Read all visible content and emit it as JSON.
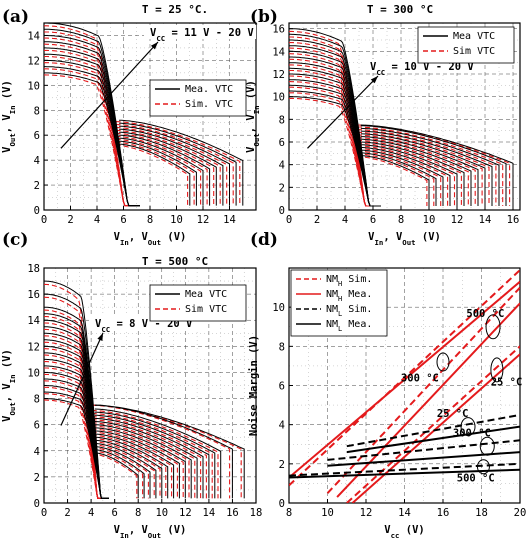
{
  "chart_data": [
    {
      "panel": "(a)",
      "type": "line",
      "title": "T = 25 °C.",
      "annotation": "V_CC = 11 V - 20 V",
      "xlabel": "V_In, V_Out (V)",
      "ylabel": "V_Out, V_In (V)",
      "xlim": [
        0,
        16
      ],
      "ylim": [
        0,
        15
      ],
      "xticks": [
        0,
        2,
        4,
        6,
        8,
        10,
        12,
        14
      ],
      "yticks": [
        0,
        2,
        4,
        6,
        8,
        10,
        12,
        14
      ],
      "grid": true,
      "legend_position": "right-middle",
      "legend": [
        {
          "label": "Mea. VTC",
          "color": "#000000",
          "dash": "solid"
        },
        {
          "label": "Sim. VTC",
          "color": "#e41a1c",
          "dash": "dashed"
        }
      ],
      "vtc_family": {
        "vcc_values": [
          11,
          11.5,
          12,
          12.5,
          13,
          13.5,
          14,
          14.5,
          15
        ],
        "mea": {
          "vm": 6.3,
          "knee": 5.9,
          "low_start": 6.6,
          "low_end": 5.7
        },
        "sim": {
          "vm": 6.0,
          "knee": 5.6,
          "low_start": 6.3,
          "low_end": 5.4
        }
      }
    },
    {
      "panel": "(b)",
      "type": "line",
      "title": "T = 300 °C",
      "annotation": "V_CC = 10 V - 20 V",
      "xlabel": "V_In, V_Out (V)",
      "ylabel": "V_Out, V_In (V)",
      "xlim": [
        0,
        16.5
      ],
      "ylim": [
        0,
        16.5
      ],
      "xticks": [
        0,
        2,
        4,
        6,
        8,
        10,
        12,
        14,
        16
      ],
      "yticks": [
        0,
        2,
        4,
        6,
        8,
        10,
        12,
        14,
        16
      ],
      "grid": true,
      "legend_position": "top-right",
      "legend": [
        {
          "label": "Mea VTC",
          "color": "#000000",
          "dash": "solid"
        },
        {
          "label": "Sim VTC",
          "color": "#e41a1c",
          "dash": "dashed"
        }
      ],
      "vtc_family": {
        "vcc_values": [
          10,
          10.5,
          11,
          11.5,
          12,
          12.5,
          13,
          13.5,
          14,
          14.5,
          15,
          15.5,
          16
        ],
        "mea": {
          "vm": 5.7,
          "knee": 5.4,
          "low_start": 6.0,
          "low_end": 5.2
        },
        "sim": {
          "vm": 5.4,
          "knee": 5.1,
          "low_start": 5.7,
          "low_end": 4.8
        }
      }
    },
    {
      "panel": "(c)",
      "type": "line",
      "title": "T = 500 °C",
      "annotation": "V_CC = 8 V - 20 V",
      "xlabel": "V_In, V_Out (V)",
      "ylabel": "V_Out, V_In (V)",
      "xlim": [
        0,
        18
      ],
      "ylim": [
        0,
        18
      ],
      "xticks": [
        0,
        2,
        4,
        6,
        8,
        10,
        12,
        14,
        16,
        18
      ],
      "yticks": [
        0,
        2,
        4,
        6,
        8,
        10,
        12,
        14,
        16,
        18
      ],
      "grid": true,
      "legend_position": "top-right",
      "legend": [
        {
          "label": "Mea VTC",
          "color": "#000000",
          "dash": "solid"
        },
        {
          "label": "Sim VTC",
          "color": "#e41a1c",
          "dash": "dashed"
        }
      ],
      "vtc_family": {
        "vcc_values": [
          8,
          8.5,
          9,
          9.5,
          10,
          10.5,
          11,
          11.5,
          12,
          12.5,
          13,
          13.5,
          14,
          14.5,
          15,
          16,
          17
        ],
        "mea": {
          "vm": 4.8,
          "knee": 4.5,
          "low_start": 5.0,
          "low_end": 4.3
        },
        "sim": {
          "vm": 4.5,
          "knee": 4.2,
          "low_start": 4.7,
          "low_end": 4.0
        }
      }
    },
    {
      "panel": "(d)",
      "type": "line",
      "title": "",
      "xlabel": "V_cc (V)",
      "ylabel": "Noise Margin (V)",
      "xlim": [
        8,
        20
      ],
      "ylim": [
        0,
        12
      ],
      "xticks": [
        8,
        10,
        12,
        14,
        16,
        18,
        20
      ],
      "yticks": [
        0,
        2,
        4,
        6,
        8,
        10
      ],
      "grid": true,
      "legend_position": "top-left",
      "legend": [
        {
          "label": "NM_H Sim.",
          "color": "#e41a1c",
          "dash": "dashed"
        },
        {
          "label": "NM_H Mea.",
          "color": "#e41a1c",
          "dash": "solid"
        },
        {
          "label": "NM_L Sim.",
          "color": "#000000",
          "dash": "dashed"
        },
        {
          "label": "NM_L Mea.",
          "color": "#000000",
          "dash": "solid"
        }
      ],
      "series": [
        {
          "group": "NM_H Sim.",
          "temp": "500 °C",
          "color": "#e41a1c",
          "dash": "dashed",
          "x": [
            8,
            20
          ],
          "y": [
            0.9,
            11.9
          ]
        },
        {
          "group": "NM_H Mea.",
          "temp": "500 °C",
          "color": "#e41a1c",
          "dash": "solid",
          "x": [
            8,
            20
          ],
          "y": [
            1.3,
            11.3
          ]
        },
        {
          "group": "NM_H Sim.",
          "temp": "300 °C",
          "color": "#e41a1c",
          "dash": "dashed",
          "x": [
            10,
            20
          ],
          "y": [
            0.5,
            11.0
          ]
        },
        {
          "group": "NM_H Mea.",
          "temp": "300 °C",
          "color": "#e41a1c",
          "dash": "solid",
          "x": [
            10.5,
            20
          ],
          "y": [
            0.3,
            10.2
          ]
        },
        {
          "group": "NM_H Sim.",
          "temp": "25 °C",
          "color": "#e41a1c",
          "dash": "dashed",
          "x": [
            11,
            20
          ],
          "y": [
            0,
            8.0
          ]
        },
        {
          "group": "NM_H Mea.",
          "temp": "25 °C",
          "color": "#e41a1c",
          "dash": "solid",
          "x": [
            11.3,
            20
          ],
          "y": [
            0,
            7.6
          ]
        },
        {
          "group": "NM_L Sim.",
          "temp": "25 °C",
          "color": "#000000",
          "dash": "dashed",
          "x": [
            11,
            20
          ],
          "y": [
            2.9,
            4.5
          ]
        },
        {
          "group": "NM_L Mea.",
          "temp": "25 °C",
          "color": "#000000",
          "dash": "solid",
          "x": [
            11,
            20
          ],
          "y": [
            2.6,
            3.9
          ]
        },
        {
          "group": "NM_L Sim.",
          "temp": "300 °C",
          "color": "#000000",
          "dash": "dashed",
          "x": [
            10,
            20
          ],
          "y": [
            2.2,
            3.2
          ]
        },
        {
          "group": "NM_L Mea.",
          "temp": "300 °C",
          "color": "#000000",
          "dash": "solid",
          "x": [
            10,
            20
          ],
          "y": [
            1.9,
            2.6
          ]
        },
        {
          "group": "NM_L Sim.",
          "temp": "500 °C",
          "color": "#000000",
          "dash": "dashed",
          "x": [
            8,
            20
          ],
          "y": [
            1.4,
            2.0
          ]
        },
        {
          "group": "NM_L Mea.",
          "temp": "500 °C",
          "color": "#000000",
          "dash": "solid",
          "x": [
            8,
            20
          ],
          "y": [
            1.3,
            1.7
          ]
        }
      ],
      "annotations": [
        {
          "text": "500 °C",
          "x": 18.2,
          "y": 9.5
        },
        {
          "text": "300 °C",
          "x": 14.8,
          "y": 6.2
        },
        {
          "text": "25 °C",
          "x": 19.3,
          "y": 6.0
        },
        {
          "text": "25 °C",
          "x": 16.5,
          "y": 4.4
        },
        {
          "text": "300 °C",
          "x": 17.5,
          "y": 3.4
        },
        {
          "text": "500 °C",
          "x": 17.7,
          "y": 1.1
        }
      ]
    }
  ]
}
